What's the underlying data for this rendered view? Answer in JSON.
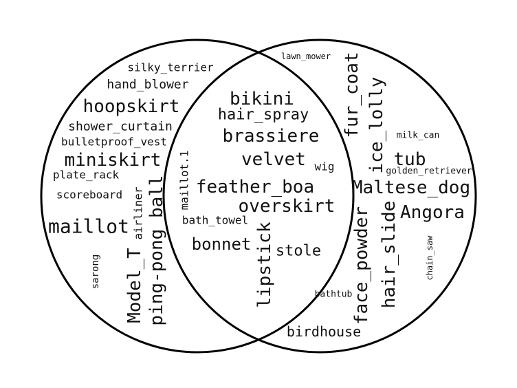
{
  "venn": {
    "left_only": [
      "silky_terrier",
      "hand_blower",
      "hoopskirt",
      "shower_curtain",
      "bulletproof_vest",
      "miniskirt",
      "plate_rack",
      "scoreboard",
      "maillot",
      "airliner",
      "ping-pong_ball",
      "Model_T",
      "sarong"
    ],
    "both": [
      "bikini",
      "hair_spray",
      "brassiere",
      "velvet",
      "wig",
      "maillot.1",
      "feather_boa",
      "overskirt",
      "bath_towel",
      "bonnet",
      "lipstick",
      "stole"
    ],
    "right_only": [
      "lawn_mower",
      "fur_coat",
      "ice_lolly",
      "milk_can",
      "tub",
      "golden_retriever",
      "Maltese_dog",
      "Angora",
      "hair_slide",
      "face_powder",
      "chain_saw",
      "bathtub",
      "birdhouse"
    ]
  }
}
